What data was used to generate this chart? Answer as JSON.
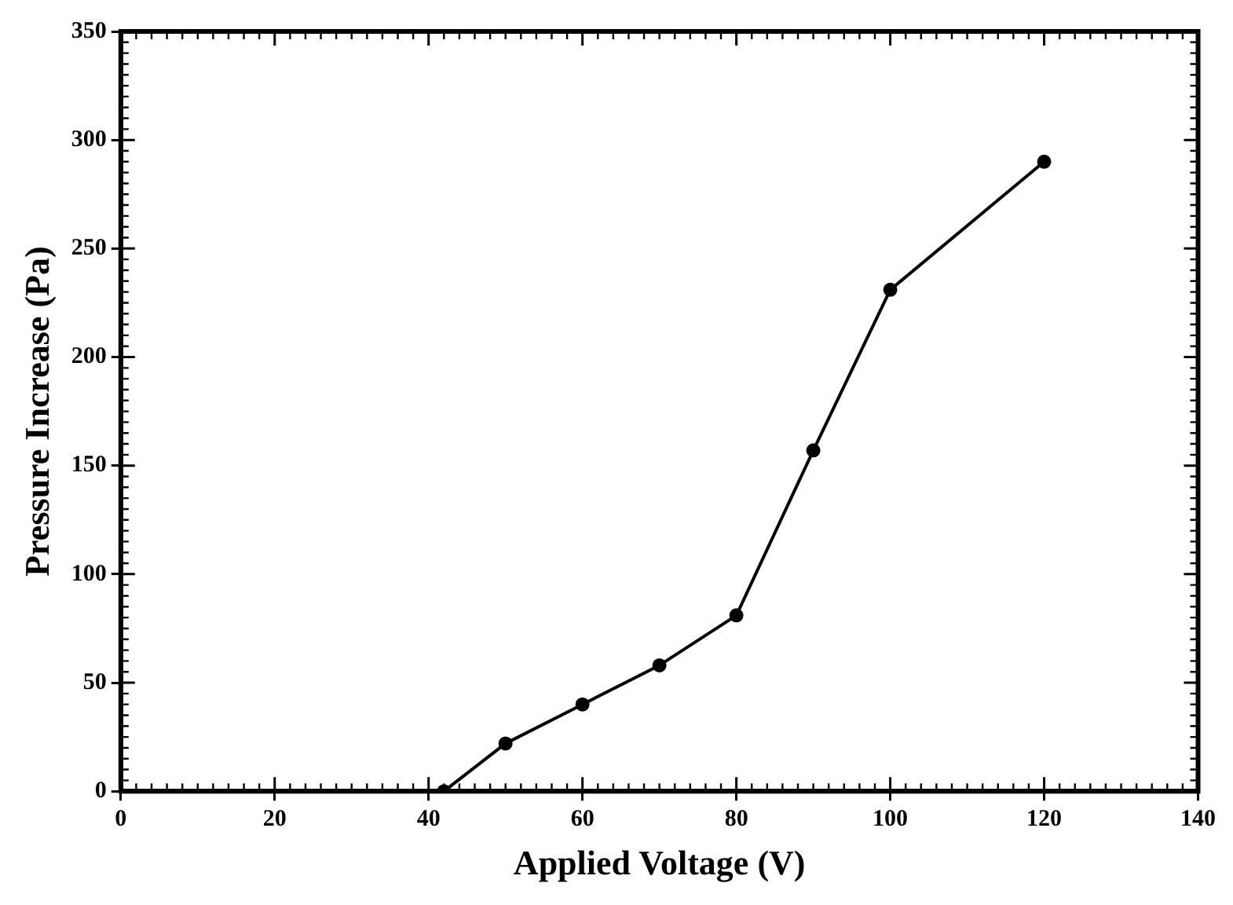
{
  "chart_data": {
    "type": "line",
    "xlabel": "Applied Voltage (V)",
    "ylabel": "Pressure Increase (Pa)",
    "x": [
      42,
      50,
      60,
      70,
      80,
      90,
      100,
      120
    ],
    "series": [
      {
        "color": "#000000",
        "values": [
          0,
          22,
          40,
          58,
          81,
          157,
          231,
          290
        ]
      }
    ],
    "xlim": [
      0,
      140
    ],
    "xticks": [
      0,
      20,
      40,
      60,
      80,
      100,
      120,
      140
    ],
    "ylim": [
      0,
      350
    ],
    "yticks": [
      0,
      50,
      100,
      150,
      200,
      250,
      300,
      350
    ],
    "grid": false,
    "legend": false,
    "marker": "circle",
    "line_style": "solid"
  }
}
